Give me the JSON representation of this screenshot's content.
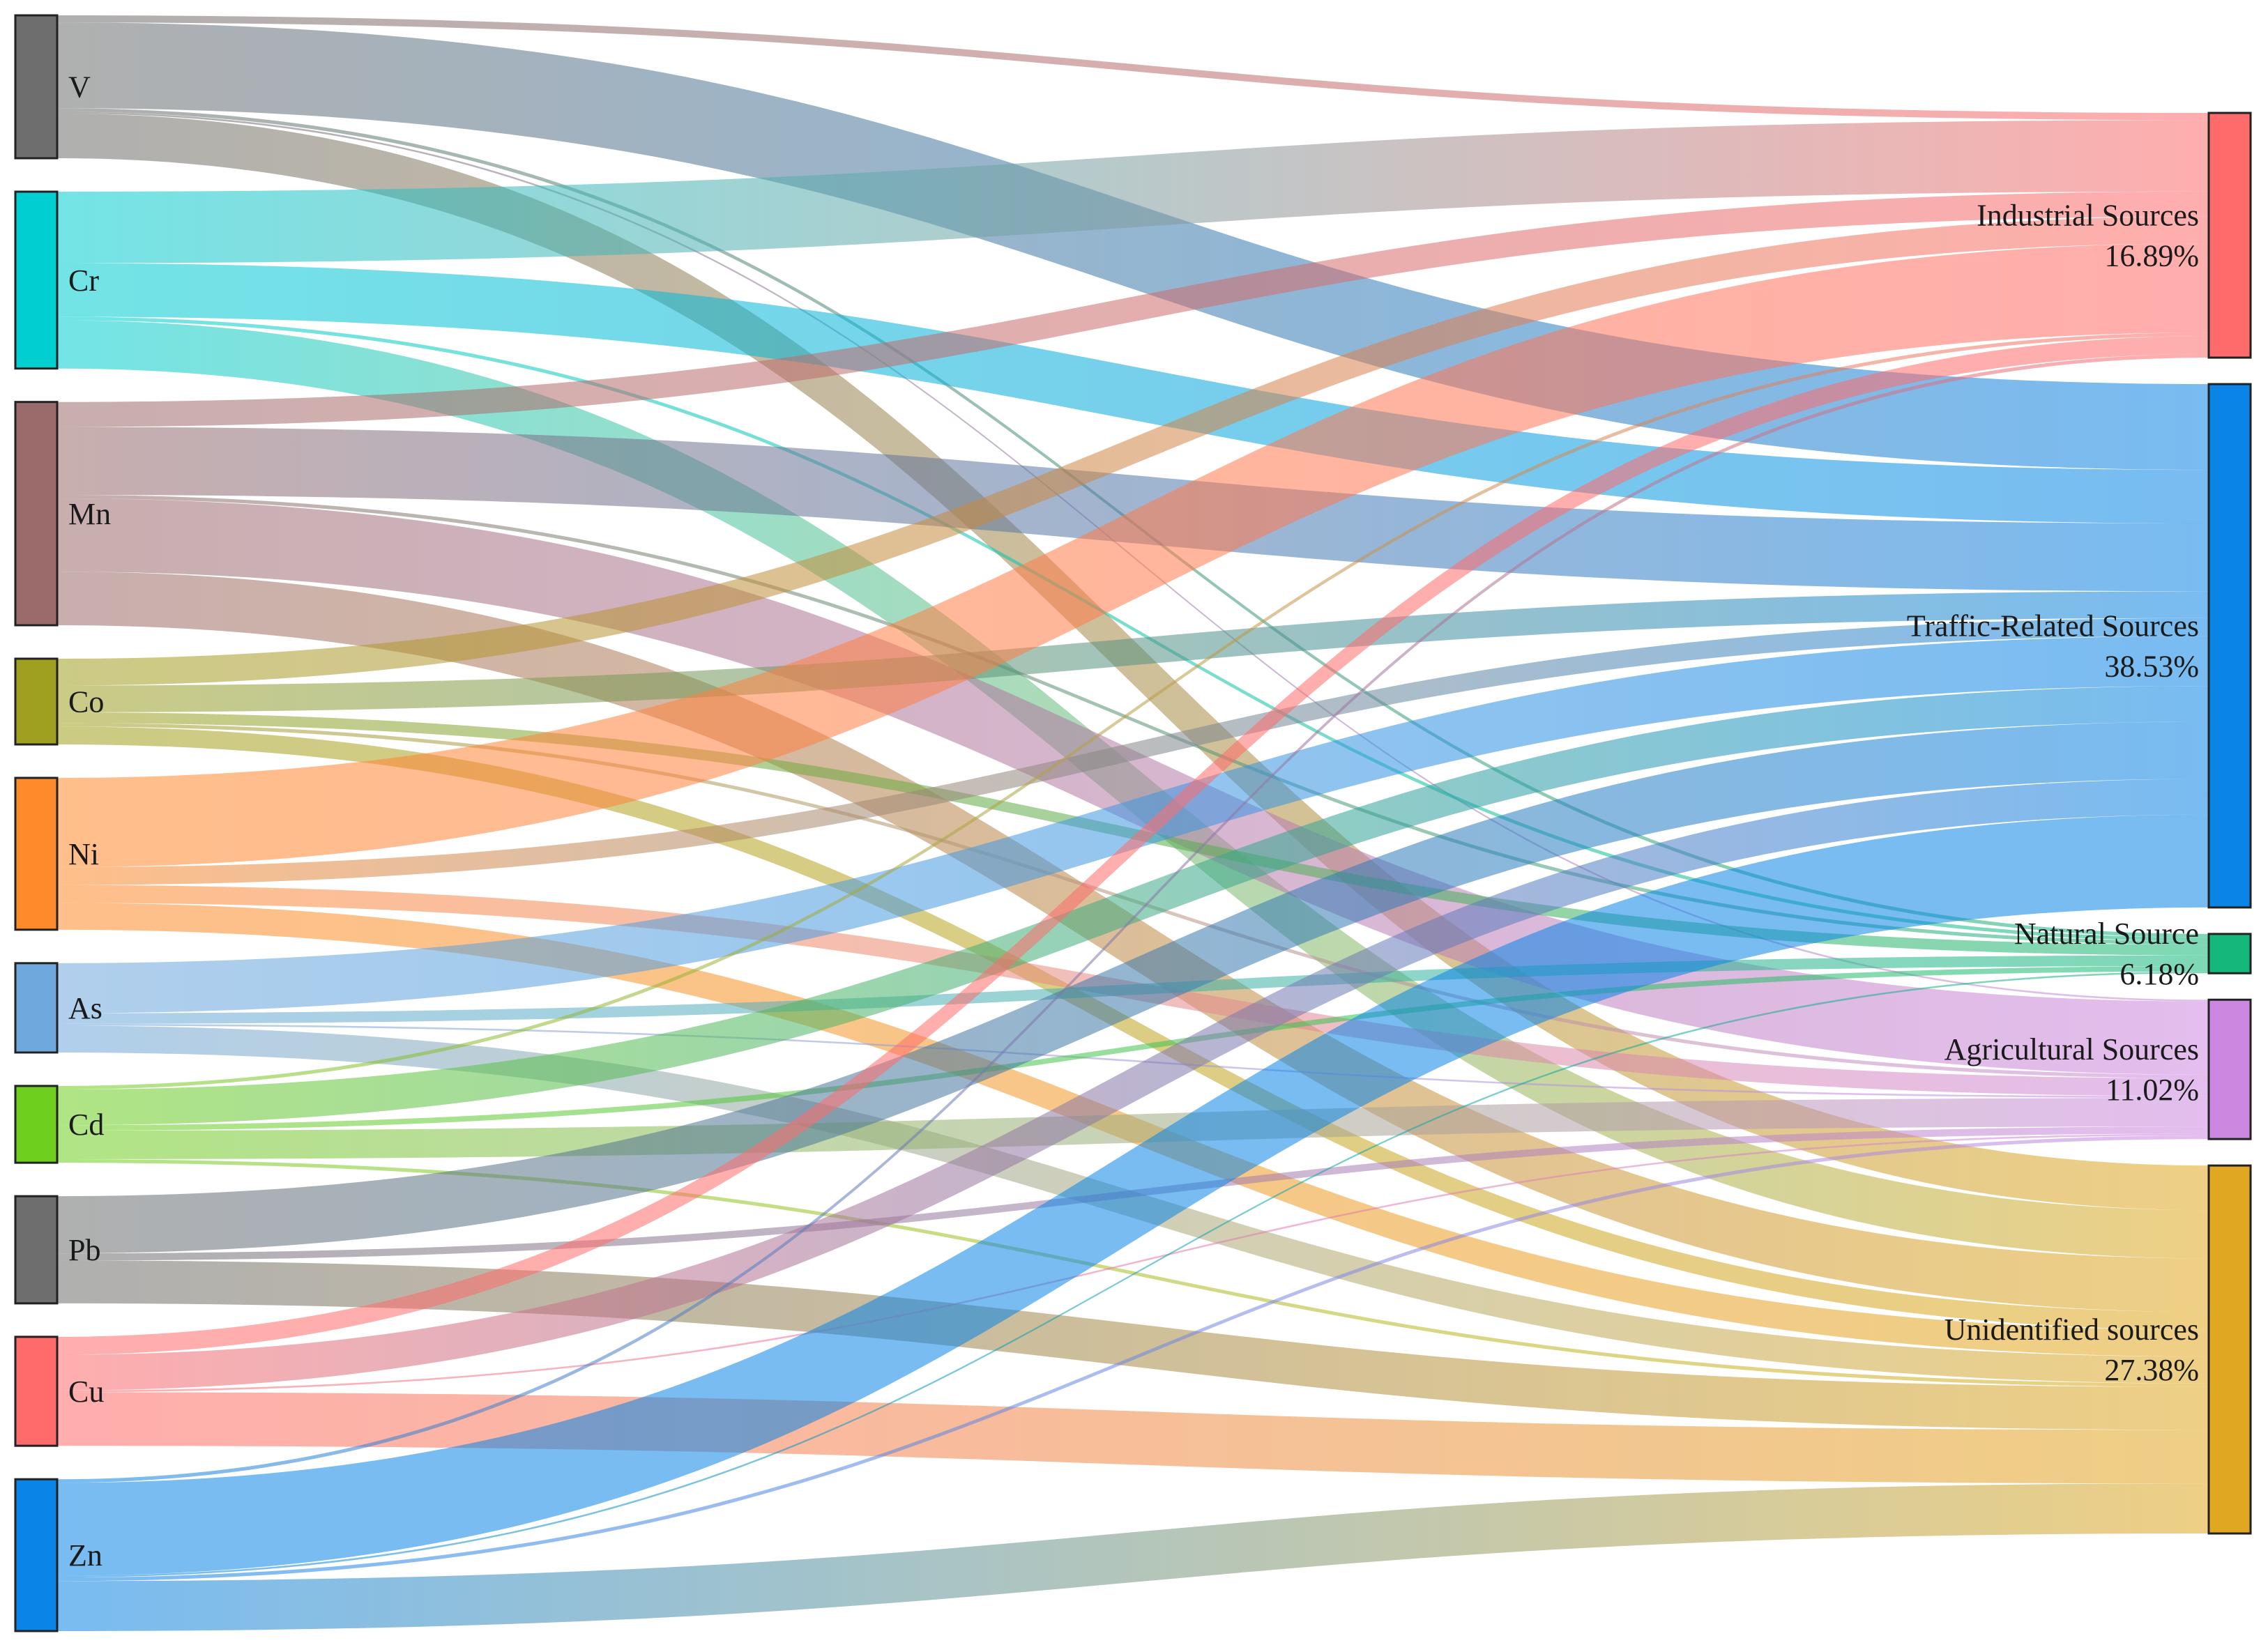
{
  "diagram": {
    "type": "sankey",
    "sources": [
      {
        "id": "V",
        "label": "V",
        "color": "#6e6e6e"
      },
      {
        "id": "Cr",
        "label": "Cr",
        "color": "#00ced1"
      },
      {
        "id": "Mn",
        "label": "Mn",
        "color": "#9b6b6b"
      },
      {
        "id": "Co",
        "label": "Co",
        "color": "#a0a020"
      },
      {
        "id": "Ni",
        "label": "Ni",
        "color": "#ff8a2a"
      },
      {
        "id": "As",
        "label": "As",
        "color": "#6fa8dc"
      },
      {
        "id": "Cd",
        "label": "Cd",
        "color": "#6fcf1f"
      },
      {
        "id": "Pb",
        "label": "Pb",
        "color": "#6e6e6e"
      },
      {
        "id": "Cu",
        "label": "Cu",
        "color": "#ff6b6b"
      },
      {
        "id": "Zn",
        "label": "Zn",
        "color": "#0a84e6"
      }
    ],
    "targets": [
      {
        "id": "IND",
        "label": "Industrial Sources",
        "percent": "16.89%",
        "color": "#ff6b6b"
      },
      {
        "id": "TRF",
        "label": "Traffic-Related Sources",
        "percent": "38.53%",
        "color": "#0a84e6"
      },
      {
        "id": "NAT",
        "label": "Natural Source",
        "percent": "6.18%",
        "color": "#14b87a"
      },
      {
        "id": "AGR",
        "label": "Agricultural Sources",
        "percent": "11.02%",
        "color": "#cc88e0"
      },
      {
        "id": "UNK",
        "label": "Unidentified sources",
        "percent": "27.38%",
        "color": "#e0a820"
      }
    ],
    "links": [
      {
        "source": "V",
        "target": "IND",
        "value": 4
      },
      {
        "source": "V",
        "target": "TRF",
        "value": 48
      },
      {
        "source": "V",
        "target": "NAT",
        "value": 2
      },
      {
        "source": "V",
        "target": "AGR",
        "value": 1
      },
      {
        "source": "V",
        "target": "UNK",
        "value": 25
      },
      {
        "source": "Cr",
        "target": "IND",
        "value": 40
      },
      {
        "source": "Cr",
        "target": "TRF",
        "value": 30
      },
      {
        "source": "Cr",
        "target": "NAT",
        "value": 2
      },
      {
        "source": "Cr",
        "target": "UNK",
        "value": 27
      },
      {
        "source": "Mn",
        "target": "IND",
        "value": 14
      },
      {
        "source": "Mn",
        "target": "TRF",
        "value": 38
      },
      {
        "source": "Mn",
        "target": "NAT",
        "value": 2
      },
      {
        "source": "Mn",
        "target": "AGR",
        "value": 41
      },
      {
        "source": "Mn",
        "target": "UNK",
        "value": 30
      },
      {
        "source": "Co",
        "target": "IND",
        "value": 15
      },
      {
        "source": "Co",
        "target": "TRF",
        "value": 15
      },
      {
        "source": "Co",
        "target": "NAT",
        "value": 6
      },
      {
        "source": "Co",
        "target": "AGR",
        "value": 2
      },
      {
        "source": "Co",
        "target": "UNK",
        "value": 10
      },
      {
        "source": "Ni",
        "target": "IND",
        "value": 50
      },
      {
        "source": "Ni",
        "target": "TRF",
        "value": 10
      },
      {
        "source": "Ni",
        "target": "AGR",
        "value": 10
      },
      {
        "source": "Ni",
        "target": "UNK",
        "value": 15
      },
      {
        "source": "As",
        "target": "TRF",
        "value": 28
      },
      {
        "source": "As",
        "target": "NAT",
        "value": 6
      },
      {
        "source": "As",
        "target": "AGR",
        "value": 1
      },
      {
        "source": "As",
        "target": "UNK",
        "value": 15
      },
      {
        "source": "Cd",
        "target": "IND",
        "value": 2
      },
      {
        "source": "Cd",
        "target": "TRF",
        "value": 20
      },
      {
        "source": "Cd",
        "target": "NAT",
        "value": 3
      },
      {
        "source": "Cd",
        "target": "AGR",
        "value": 16
      },
      {
        "source": "Cd",
        "target": "UNK",
        "value": 2
      },
      {
        "source": "Pb",
        "target": "TRF",
        "value": 32
      },
      {
        "source": "Pb",
        "target": "AGR",
        "value": 4
      },
      {
        "source": "Pb",
        "target": "UNK",
        "value": 24
      },
      {
        "source": "Cu",
        "target": "IND",
        "value": 10
      },
      {
        "source": "Cu",
        "target": "TRF",
        "value": 20
      },
      {
        "source": "Cu",
        "target": "AGR",
        "value": 1
      },
      {
        "source": "Cu",
        "target": "UNK",
        "value": 30
      },
      {
        "source": "Zn",
        "target": "IND",
        "value": 2
      },
      {
        "source": "Zn",
        "target": "TRF",
        "value": 52
      },
      {
        "source": "Zn",
        "target": "NAT",
        "value": 1
      },
      {
        "source": "Zn",
        "target": "AGR",
        "value": 2
      },
      {
        "source": "Zn",
        "target": "UNK",
        "value": 28
      }
    ]
  }
}
